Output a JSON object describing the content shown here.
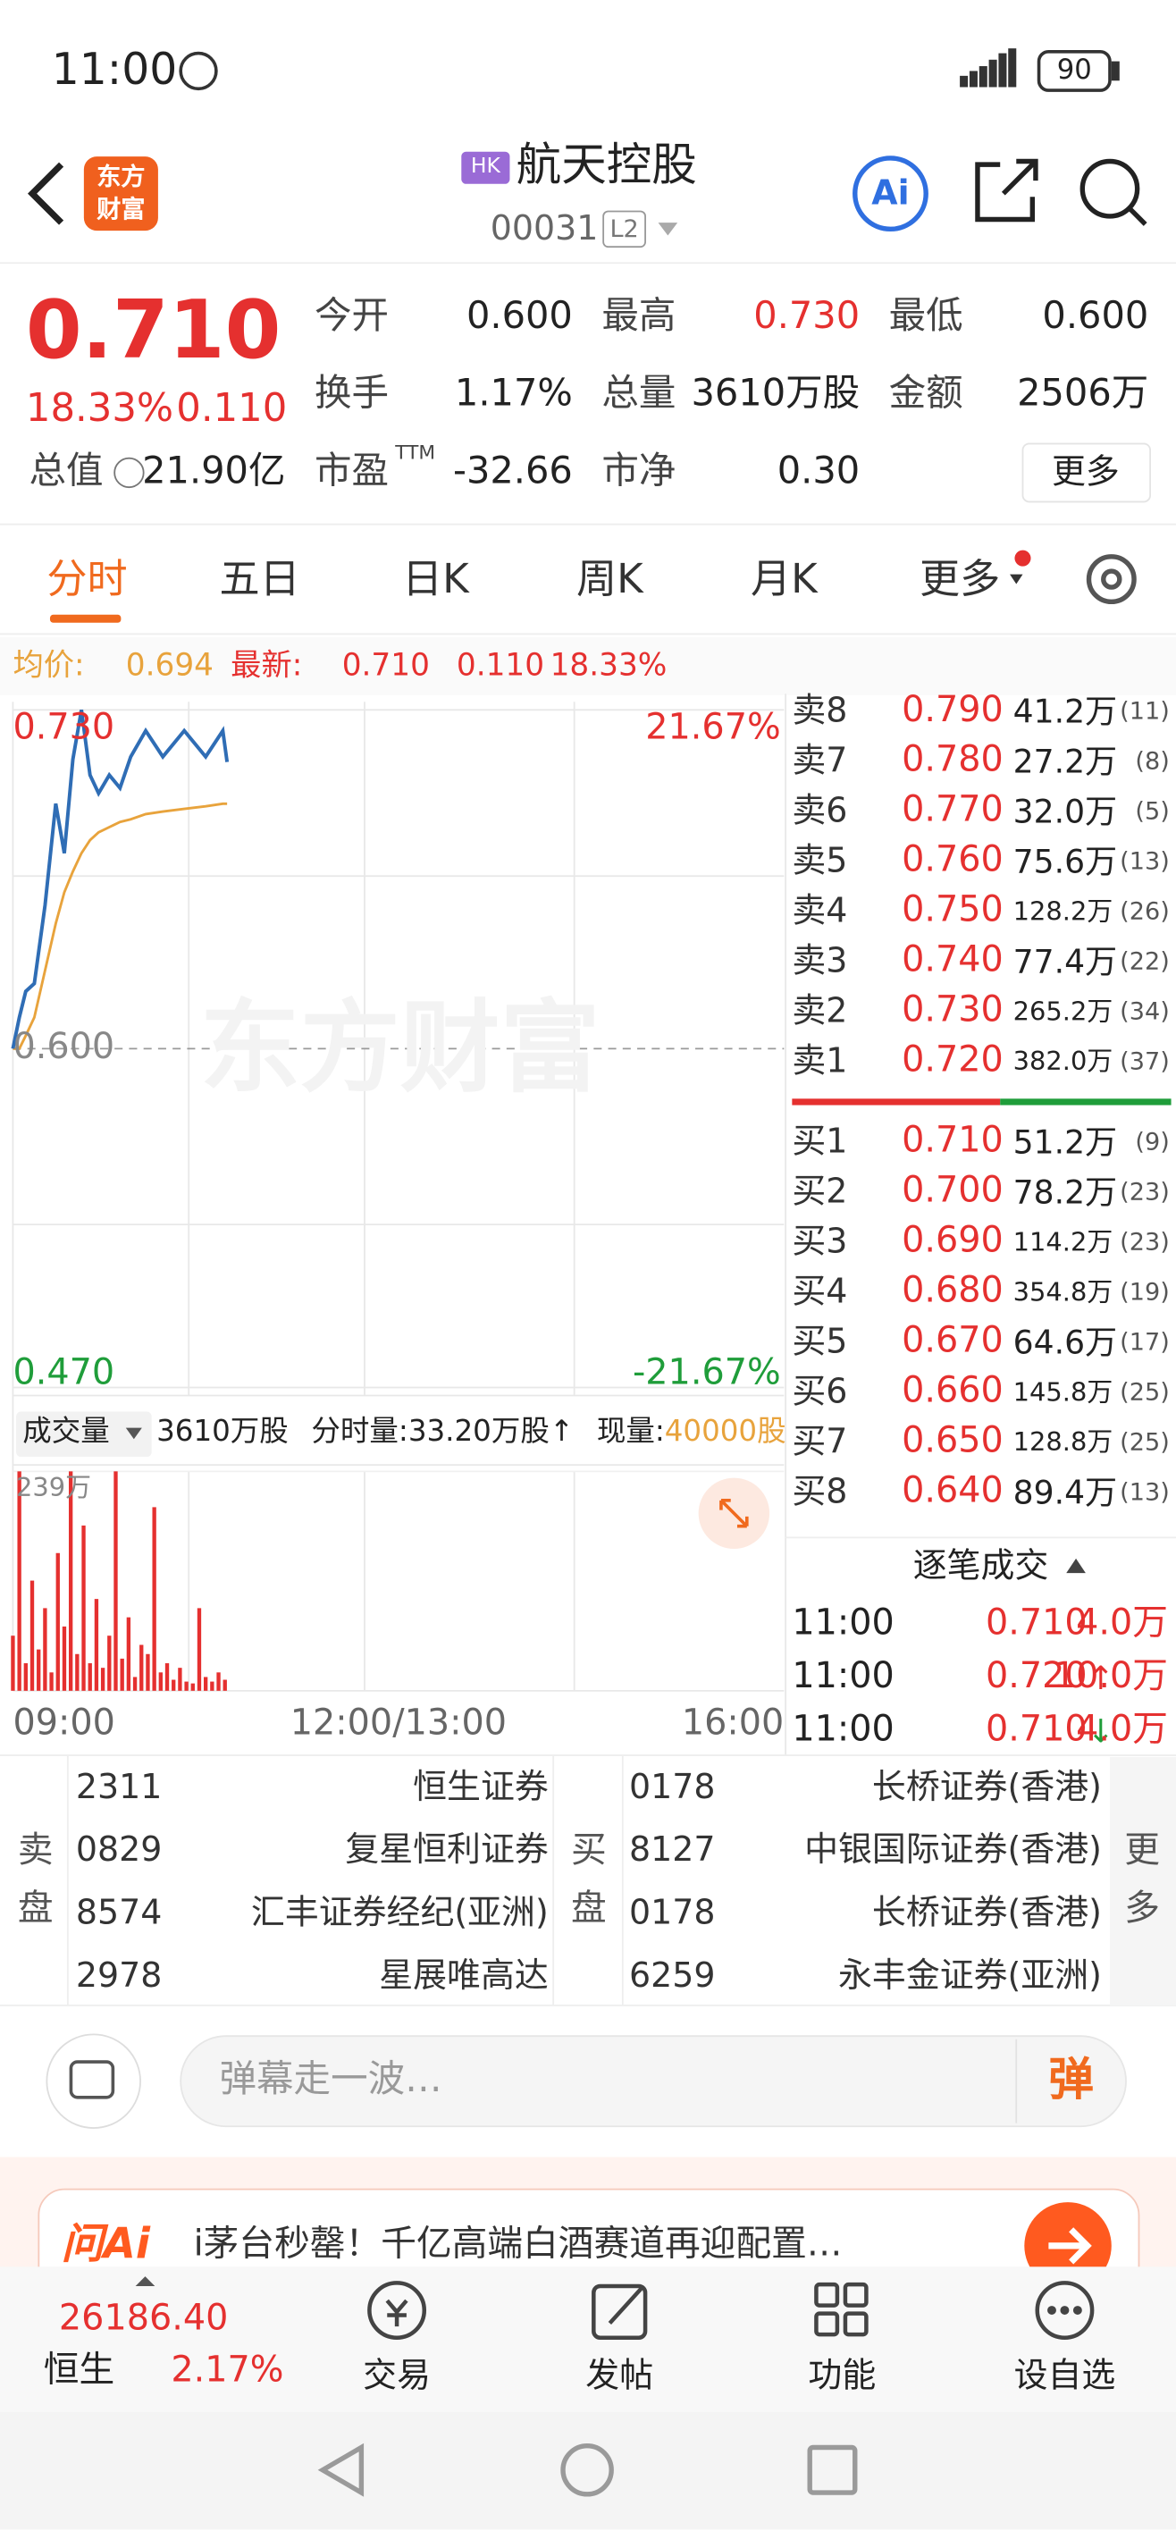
{
  "status_bar": {
    "time": "11:00",
    "battery": "90"
  },
  "header": {
    "logo": [
      "东方",
      "财富"
    ],
    "badge": "HK",
    "name": "航天控股",
    "code": "00031",
    "level": "L2",
    "ai": "Ai"
  },
  "quote": {
    "price": "0.710",
    "change_pct": "18.33%",
    "change": "0.110",
    "stats": [
      {
        "label": "今开",
        "value": "0.600"
      },
      {
        "label": "最高",
        "value": "0.730"
      },
      {
        "label": "最低",
        "value": "0.600"
      },
      {
        "label": "换手",
        "value": "1.17%"
      },
      {
        "label": "总量",
        "value": "3610万股"
      },
      {
        "label": "金额",
        "value": "2506万"
      },
      {
        "label": "总值",
        "value": "21.90亿"
      },
      {
        "label": "市盈",
        "sup": "TTM",
        "value": "-32.66"
      },
      {
        "label": "市净",
        "value": "0.30"
      }
    ],
    "more": "更多"
  },
  "tabs": {
    "items": [
      "分时",
      "五日",
      "日K",
      "周K",
      "月K",
      "更多"
    ],
    "active": 0
  },
  "info": {
    "avg_label": "均价:",
    "avg": "0.694",
    "latest_label": "最新:",
    "latest": "0.710",
    "change": "0.110",
    "change_pct": "18.33%"
  },
  "intraday": {
    "watermark": "东方财富",
    "ylim": [
      0.47,
      0.73
    ],
    "yticks": [
      {
        "value": 0.73,
        "label": "0.730"
      },
      {
        "value": 0.6,
        "label": "0.600"
      },
      {
        "value": 0.47,
        "label": "0.470"
      }
    ],
    "pct_labels": [
      "21.67%",
      "-21.67%"
    ],
    "xlim": [
      0,
      360
    ],
    "xticks": [
      {
        "value": 0,
        "label": "09:00"
      },
      {
        "value": 180,
        "label": "12:00/13:00"
      },
      {
        "value": 360,
        "label": "16:00"
      }
    ],
    "x": [
      0,
      3,
      6,
      10,
      15,
      20,
      24,
      28,
      32,
      36,
      40,
      45,
      50,
      55,
      62,
      70,
      80,
      90,
      98,
      100
    ],
    "price": [
      0.6,
      0.612,
      0.622,
      0.625,
      0.655,
      0.694,
      0.675,
      0.711,
      0.73,
      0.705,
      0.698,
      0.705,
      0.7,
      0.712,
      0.722,
      0.712,
      0.722,
      0.712,
      0.722,
      0.71
    ],
    "avg": [
      0.6,
      0.6,
      0.605,
      0.612,
      0.63,
      0.648,
      0.66,
      0.668,
      0.675,
      0.68,
      0.683,
      0.685,
      0.687,
      0.688,
      0.69,
      0.691,
      0.692,
      0.693,
      0.694,
      0.694
    ],
    "price_color": "#2f6db5",
    "avg_color": "#e8a33c"
  },
  "volume": {
    "selector": "成交量",
    "total": "3610万股",
    "minute": "分时量:33.20万股↑",
    "current_label": "现量:",
    "current": "40000股",
    "ylim": [
      0,
      239
    ],
    "yticks": [
      {
        "value": 239,
        "label": "239万"
      }
    ],
    "color": "#e5302f",
    "x": [
      0,
      3,
      6,
      9,
      12,
      15,
      18,
      21,
      24,
      27,
      30,
      33,
      36,
      39,
      42,
      45,
      48,
      51,
      54,
      57,
      60,
      63,
      66,
      69,
      72,
      75,
      78,
      81,
      84,
      87,
      90,
      93,
      96,
      99
    ],
    "values": [
      60,
      239,
      30,
      120,
      45,
      90,
      20,
      150,
      70,
      239,
      40,
      180,
      30,
      100,
      25,
      60,
      239,
      35,
      80,
      15,
      50,
      40,
      200,
      20,
      30,
      12,
      25,
      10,
      8,
      90,
      15,
      10,
      20,
      12
    ]
  },
  "order_book": {
    "asks": [
      {
        "label": "卖8",
        "price": "0.790",
        "volume": "41.2万",
        "count": "(11)"
      },
      {
        "label": "卖7",
        "price": "0.780",
        "volume": "27.2万",
        "count": "(8)"
      },
      {
        "label": "卖6",
        "price": "0.770",
        "volume": "32.0万",
        "count": "(5)"
      },
      {
        "label": "卖5",
        "price": "0.760",
        "volume": "75.6万",
        "count": "(13)"
      },
      {
        "label": "卖4",
        "price": "0.750",
        "volume": "128.2万",
        "count": "(26)"
      },
      {
        "label": "卖3",
        "price": "0.740",
        "volume": "77.4万",
        "count": "(22)"
      },
      {
        "label": "卖2",
        "price": "0.730",
        "volume": "265.2万",
        "count": "(34)"
      },
      {
        "label": "卖1",
        "price": "0.720",
        "volume": "382.0万",
        "count": "(37)"
      }
    ],
    "bids": [
      {
        "label": "买1",
        "price": "0.710",
        "volume": "51.2万",
        "count": "(9)"
      },
      {
        "label": "买2",
        "price": "0.700",
        "volume": "78.2万",
        "count": "(23)"
      },
      {
        "label": "买3",
        "price": "0.690",
        "volume": "114.2万",
        "count": "(23)"
      },
      {
        "label": "买4",
        "price": "0.680",
        "volume": "354.8万",
        "count": "(19)"
      },
      {
        "label": "买5",
        "price": "0.670",
        "volume": "64.6万",
        "count": "(17)"
      },
      {
        "label": "买6",
        "price": "0.660",
        "volume": "145.8万",
        "count": "(25)"
      },
      {
        "label": "买7",
        "price": "0.650",
        "volume": "128.8万",
        "count": "(25)"
      },
      {
        "label": "买8",
        "price": "0.640",
        "volume": "89.4万",
        "count": "(13)"
      }
    ]
  },
  "trades": {
    "title": "逐笔成交",
    "rows": [
      {
        "time": "11:00",
        "price": "0.710",
        "volume": "4.0万"
      },
      {
        "time": "11:00",
        "price": "0.720",
        "arrow": "↑",
        "volume": "10.0万"
      },
      {
        "time": "11:00",
        "price": "0.710",
        "arrow": "↓",
        "volume": "4.0万"
      }
    ]
  },
  "brokers": {
    "sell_label": "卖盘",
    "buy_label": "买盘",
    "more": "更多",
    "sell": [
      {
        "code": "2311",
        "name": "恒生证券"
      },
      {
        "code": "0829",
        "name": "复星恒利证券"
      },
      {
        "code": "8574",
        "name": "汇丰证券经纪(亚洲)"
      },
      {
        "code": "2978",
        "name": "星展唯高达"
      }
    ],
    "buy": [
      {
        "code": "0178",
        "name": "长桥证券(香港)"
      },
      {
        "code": "8127",
        "name": "中银国际证券(香港)"
      },
      {
        "code": "0178",
        "name": "长桥证券(香港)"
      },
      {
        "code": "6259",
        "name": "永丰金证券(亚洲)"
      }
    ]
  },
  "comment": {
    "placeholder": "弹幕走一波…",
    "button": "弹"
  },
  "ad": {
    "brand": "问Ai",
    "text": "i茅台秒罄！千亿高端白酒赛道再迎配置…"
  },
  "bottom_nav": {
    "index_value": "26186.40",
    "index_name": "恒生",
    "index_change": "2.17%",
    "items": [
      "交易",
      "发帖",
      "功能",
      "设自选"
    ]
  }
}
